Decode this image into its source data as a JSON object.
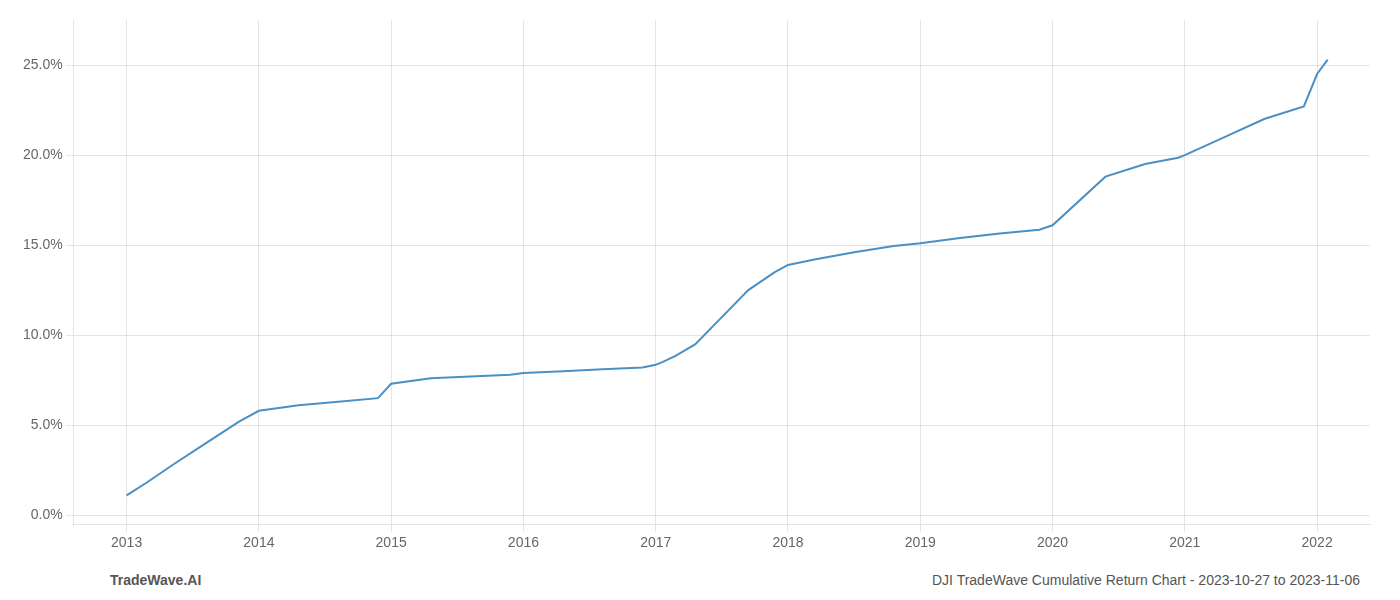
{
  "chart_data": {
    "type": "line",
    "x": [
      2013.0,
      2013.15,
      2013.35,
      2013.6,
      2013.85,
      2014.0,
      2014.3,
      2014.6,
      2014.9,
      2015.0,
      2015.3,
      2015.6,
      2015.9,
      2016.0,
      2016.3,
      2016.6,
      2016.9,
      2017.0,
      2017.05,
      2017.15,
      2017.3,
      2017.5,
      2017.7,
      2017.9,
      2018.0,
      2018.2,
      2018.5,
      2018.8,
      2019.0,
      2019.3,
      2019.6,
      2019.9,
      2020.0,
      2020.4,
      2020.7,
      2020.95,
      2021.0,
      2021.3,
      2021.6,
      2021.9,
      2022.0,
      2022.08
    ],
    "values": [
      1.1,
      1.8,
      2.8,
      4.0,
      5.2,
      5.8,
      6.1,
      6.3,
      6.5,
      7.3,
      7.6,
      7.7,
      7.8,
      7.9,
      8.0,
      8.1,
      8.2,
      8.35,
      8.5,
      8.85,
      9.5,
      11.0,
      12.5,
      13.5,
      13.9,
      14.2,
      14.6,
      14.95,
      15.1,
      15.4,
      15.65,
      15.85,
      16.1,
      18.8,
      19.5,
      19.85,
      20.0,
      21.0,
      22.0,
      22.7,
      24.5,
      25.3
    ],
    "color": "#4a90c4",
    "xlim": [
      2012.6,
      2022.4
    ],
    "ylim": [
      -0.5,
      27.5
    ],
    "xticks": [
      2013,
      2014,
      2015,
      2016,
      2017,
      2018,
      2019,
      2020,
      2021,
      2022
    ],
    "yticks": [
      {
        "value": 0.0,
        "label": "0.0%"
      },
      {
        "value": 5.0,
        "label": "5.0%"
      },
      {
        "value": 10.0,
        "label": "10.0%"
      },
      {
        "value": 15.0,
        "label": "15.0%"
      },
      {
        "value": 20.0,
        "label": "20.0%"
      },
      {
        "value": 25.0,
        "label": "25.0%"
      }
    ],
    "grid": true,
    "annotations": [
      "TradeWave.AI",
      "DJI TradeWave Cumulative Return Chart - 2023-10-27 to 2023-11-06"
    ]
  }
}
